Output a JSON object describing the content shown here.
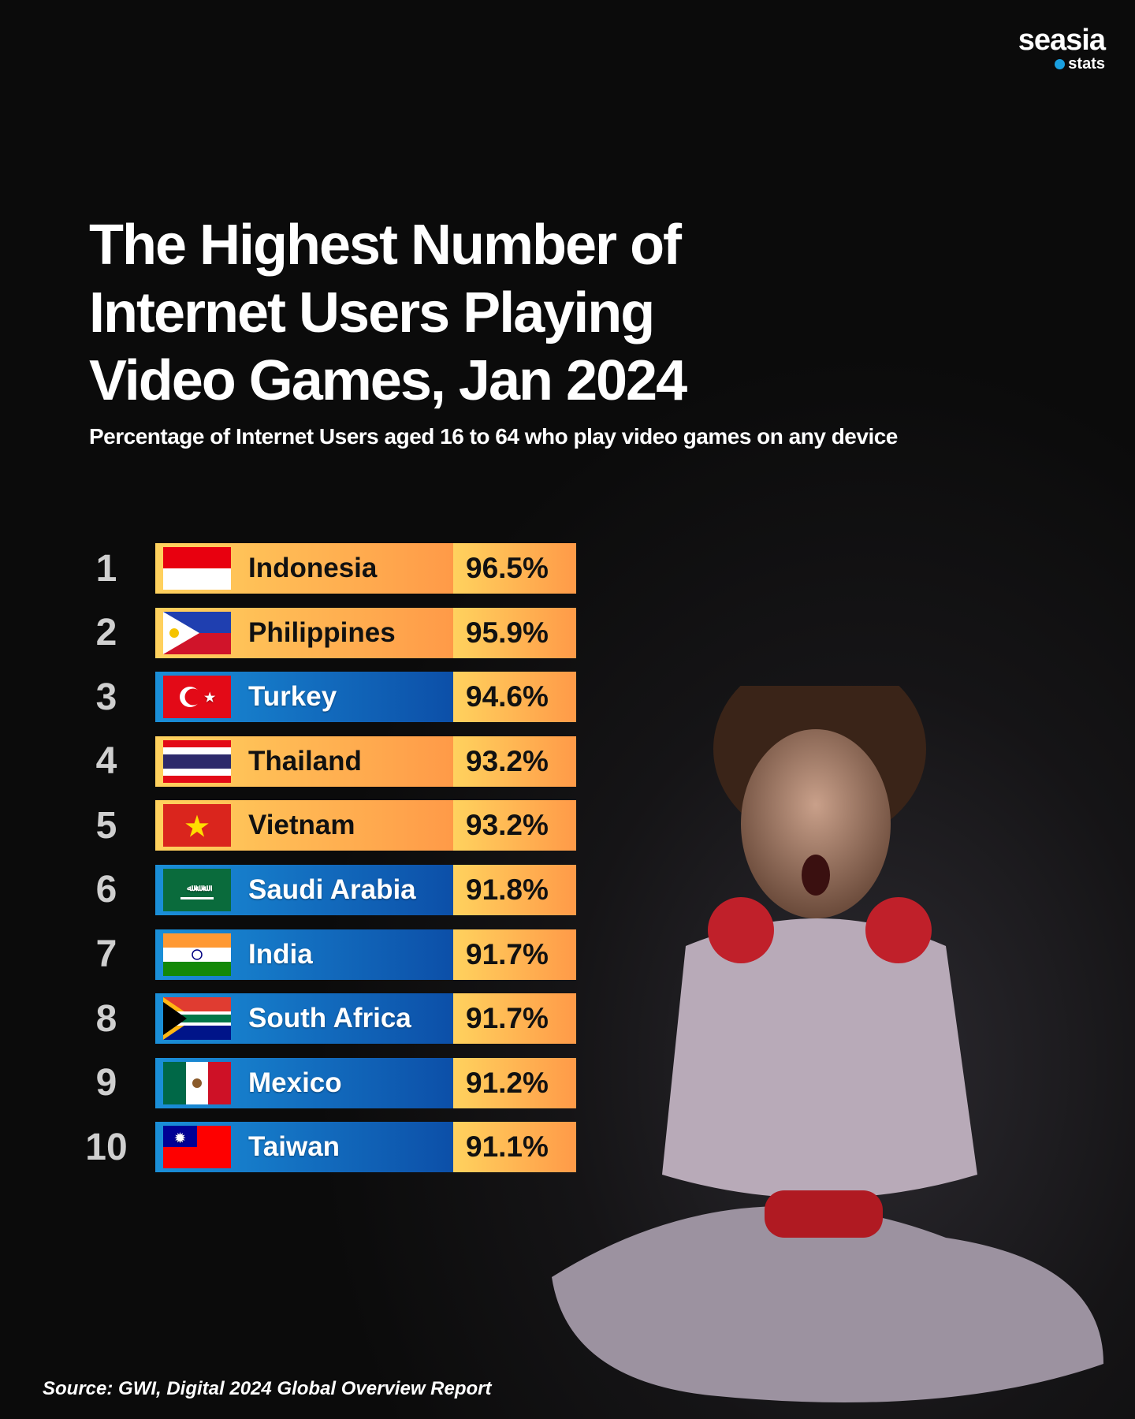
{
  "logo": {
    "brand": "seasia",
    "sub": "stats"
  },
  "title_lines": [
    "The Highest Number of",
    "Internet Users Playing",
    "Video Games, Jan 2024"
  ],
  "subtitle": "Percentage of Internet Users aged 16 to 64 who play video games on any device",
  "source": "Source: GWI, Digital 2024 Global Overview Report",
  "colors": {
    "orange_start": "#ffd25e",
    "orange_end": "#ff9a48",
    "blue_start": "#1a8fd8",
    "blue_end": "#0c4fa8"
  },
  "chart_data": {
    "type": "bar",
    "title": "The Highest Number of Internet Users Playing Video Games, Jan 2024",
    "ylabel": "Percentage of Internet Users aged 16 to 64 who play video games on any device",
    "categories": [
      "Indonesia",
      "Philippines",
      "Turkey",
      "Thailand",
      "Vietnam",
      "Saudi Arabia",
      "India",
      "South Africa",
      "Mexico",
      "Taiwan"
    ],
    "ranks": [
      "1",
      "2",
      "3",
      "4",
      "5",
      "6",
      "7",
      "8",
      "9",
      "10"
    ],
    "values": [
      96.5,
      95.9,
      94.6,
      93.2,
      93.2,
      91.8,
      91.7,
      91.7,
      91.2,
      91.1
    ],
    "labels": [
      "96.5%",
      "95.9%",
      "94.6%",
      "93.2%",
      "93.2%",
      "91.8%",
      "91.7%",
      "91.7%",
      "91.2%",
      "91.1%"
    ],
    "bar_style": [
      "orange",
      "orange",
      "blue",
      "orange",
      "orange",
      "blue",
      "blue",
      "blue",
      "blue",
      "blue"
    ],
    "flags": [
      "id",
      "ph",
      "tr",
      "th",
      "vn",
      "sa",
      "in",
      "za",
      "mx",
      "tw"
    ]
  }
}
